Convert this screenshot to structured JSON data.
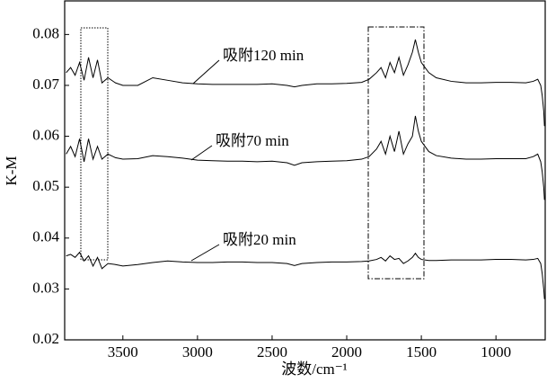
{
  "chart_data": {
    "type": "line",
    "y_label": "K-M",
    "x_label": "波数/cm⁻¹",
    "xlim": [
      3890,
      670
    ],
    "ylim": [
      0.02,
      0.0866
    ],
    "xticks": [
      3500,
      3000,
      2500,
      2000,
      1500,
      1000
    ],
    "yticks": [
      0.02,
      0.03,
      0.04,
      0.05,
      0.06,
      0.07,
      0.08
    ],
    "x": [
      3880,
      3850,
      3820,
      3790,
      3760,
      3730,
      3700,
      3670,
      3640,
      3600,
      3550,
      3500,
      3400,
      3300,
      3200,
      3100,
      3000,
      2900,
      2800,
      2700,
      2600,
      2500,
      2400,
      2350,
      2300,
      2200,
      2100,
      2000,
      1900,
      1850,
      1800,
      1770,
      1740,
      1710,
      1680,
      1650,
      1620,
      1590,
      1560,
      1540,
      1520,
      1500,
      1450,
      1400,
      1300,
      1200,
      1100,
      1000,
      900,
      800,
      750,
      720,
      700,
      690,
      680,
      675
    ],
    "series": [
      {
        "name": "吸附120 min",
        "color": "#000000",
        "values": [
          0.0725,
          0.0735,
          0.072,
          0.0745,
          0.071,
          0.0755,
          0.0715,
          0.075,
          0.0705,
          0.0715,
          0.0705,
          0.07,
          0.07,
          0.0715,
          0.071,
          0.0705,
          0.0703,
          0.0702,
          0.0702,
          0.0702,
          0.0702,
          0.0703,
          0.07,
          0.0697,
          0.07,
          0.0703,
          0.0703,
          0.0704,
          0.0706,
          0.0712,
          0.0725,
          0.0735,
          0.0715,
          0.0745,
          0.0725,
          0.0755,
          0.072,
          0.074,
          0.0765,
          0.079,
          0.0765,
          0.0745,
          0.0725,
          0.0715,
          0.0708,
          0.0705,
          0.0705,
          0.0706,
          0.0706,
          0.0705,
          0.0708,
          0.0712,
          0.07,
          0.068,
          0.065,
          0.062
        ]
      },
      {
        "name": "吸附70 min",
        "color": "#000000",
        "values": [
          0.0565,
          0.058,
          0.056,
          0.0595,
          0.055,
          0.0595,
          0.0555,
          0.058,
          0.0555,
          0.0565,
          0.0558,
          0.0555,
          0.0556,
          0.0562,
          0.056,
          0.0557,
          0.0553,
          0.0552,
          0.0551,
          0.0551,
          0.055,
          0.0551,
          0.0548,
          0.0543,
          0.0548,
          0.055,
          0.0551,
          0.0552,
          0.0555,
          0.056,
          0.0575,
          0.059,
          0.0565,
          0.06,
          0.057,
          0.061,
          0.0565,
          0.0585,
          0.06,
          0.064,
          0.061,
          0.059,
          0.057,
          0.0562,
          0.0557,
          0.0555,
          0.0555,
          0.0556,
          0.0556,
          0.0556,
          0.056,
          0.0565,
          0.055,
          0.053,
          0.05,
          0.0475
        ]
      },
      {
        "name": "吸附20 min",
        "color": "#000000",
        "values": [
          0.0365,
          0.0368,
          0.0362,
          0.0372,
          0.0355,
          0.0365,
          0.0345,
          0.0362,
          0.034,
          0.035,
          0.0348,
          0.0345,
          0.0348,
          0.0352,
          0.0355,
          0.0353,
          0.0352,
          0.0352,
          0.0353,
          0.0353,
          0.0352,
          0.0352,
          0.035,
          0.0346,
          0.035,
          0.0352,
          0.0353,
          0.0353,
          0.0354,
          0.0355,
          0.0358,
          0.0362,
          0.0355,
          0.0365,
          0.0358,
          0.036,
          0.035,
          0.0355,
          0.0362,
          0.037,
          0.0362,
          0.0358,
          0.0356,
          0.0356,
          0.0357,
          0.0357,
          0.0357,
          0.0358,
          0.0358,
          0.0357,
          0.0358,
          0.036,
          0.035,
          0.033,
          0.03,
          0.028
        ]
      }
    ]
  }
}
